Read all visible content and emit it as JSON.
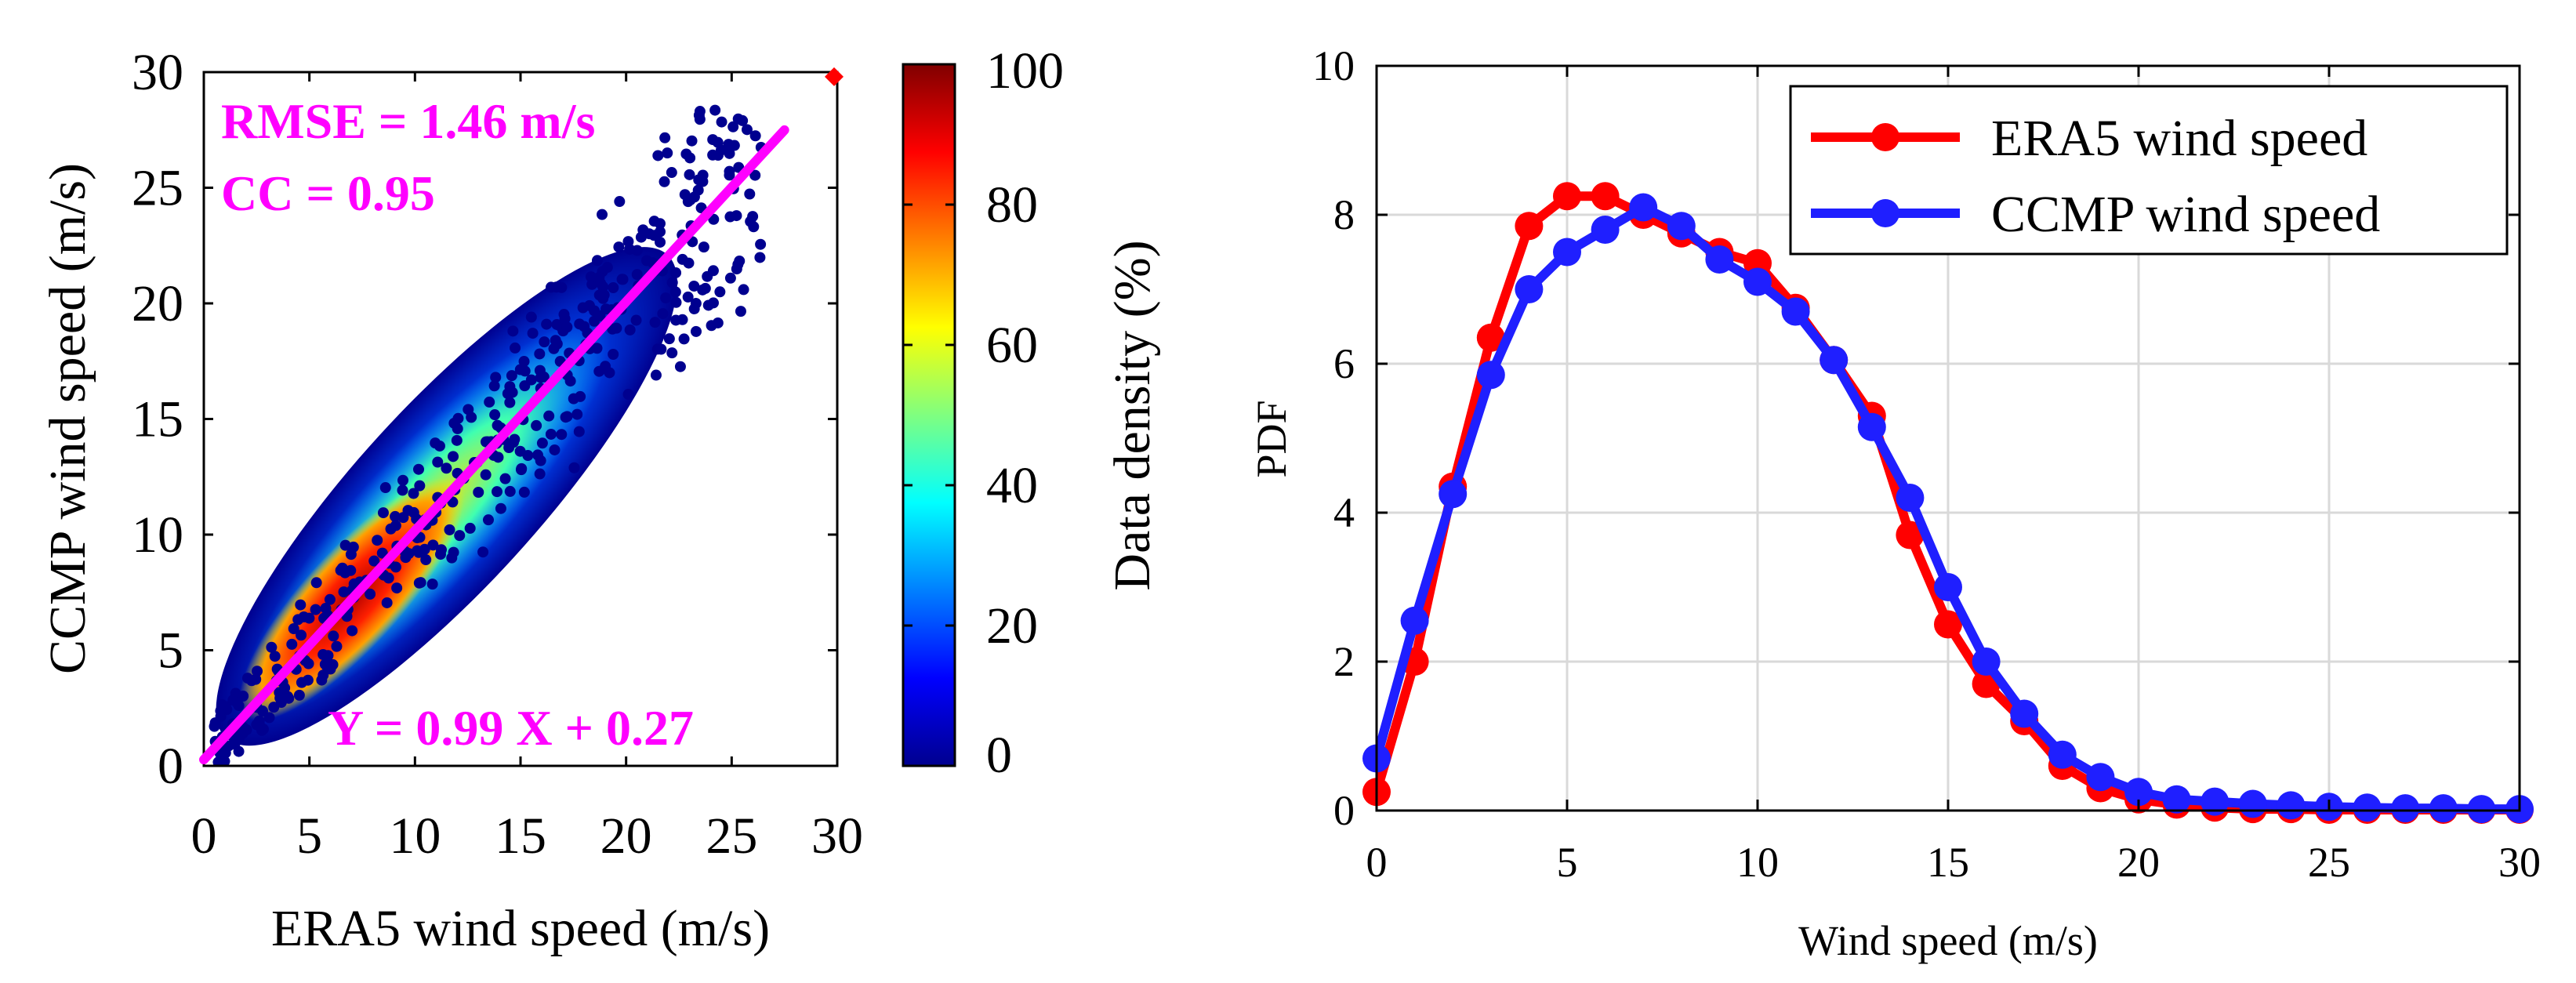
{
  "chart_data": [
    {
      "type": "scatter",
      "title": "",
      "xlabel": "ERA5 wind speed (m/s)",
      "ylabel": "CCMP wind speed (m/s)",
      "xlim": [
        0,
        30
      ],
      "ylim": [
        0,
        30
      ],
      "xticks": [
        0,
        5,
        10,
        15,
        20,
        25,
        30
      ],
      "yticks": [
        0,
        5,
        10,
        15,
        20,
        25,
        30
      ],
      "grid": false,
      "fit_line": {
        "slope": 0.99,
        "intercept": 0.27,
        "x_range": [
          0,
          27.5
        ],
        "color": "#ff00ff"
      },
      "reference_marker": {
        "x": 30,
        "y": 29.8,
        "color": "#ff0000"
      },
      "annotations": {
        "rmse": "RMSE = 1.46 m/s",
        "cc": "CC = 0.95",
        "equation": "Y = 0.99 X + 0.27"
      },
      "annotation_color": "#ff00ff",
      "density_colormap": "jet",
      "colorbar": {
        "label": "Data density (%)",
        "range": [
          0,
          100
        ],
        "ticks": [
          0,
          20,
          40,
          60,
          80,
          100
        ]
      }
    },
    {
      "type": "line",
      "title": "",
      "xlabel": "Wind speed (m/s)",
      "ylabel": "PDF",
      "xlim": [
        0,
        30
      ],
      "ylim": [
        0,
        10
      ],
      "xticks": [
        0,
        5,
        10,
        15,
        20,
        25,
        30
      ],
      "yticks": [
        0,
        2,
        4,
        6,
        8,
        10
      ],
      "grid": true,
      "legend": "top-right",
      "series": [
        {
          "name": "ERA5 wind speed",
          "color": "#ff0000",
          "x": [
            0,
            1,
            2,
            3,
            4,
            5,
            6,
            7,
            8,
            9,
            10,
            11,
            12,
            13,
            14,
            15,
            16,
            17,
            18,
            19,
            20,
            21,
            22,
            23,
            24,
            25,
            26,
            27,
            28,
            29,
            30
          ],
          "y": [
            0.25,
            2.0,
            4.35,
            6.35,
            7.85,
            8.25,
            8.25,
            8.0,
            7.75,
            7.5,
            7.35,
            6.75,
            6.05,
            5.3,
            3.7,
            2.5,
            1.7,
            1.2,
            0.6,
            0.3,
            0.15,
            0.08,
            0.04,
            0.02,
            0.02,
            0.01,
            0.01,
            0.01,
            0.01,
            0.01,
            0.01
          ]
        },
        {
          "name": "CCMP wind speed",
          "color": "#1f1fff",
          "x": [
            0,
            1,
            2,
            3,
            4,
            5,
            6,
            7,
            8,
            9,
            10,
            11,
            12,
            13,
            14,
            15,
            16,
            17,
            18,
            19,
            20,
            21,
            22,
            23,
            24,
            25,
            26,
            27,
            28,
            29,
            30
          ],
          "y": [
            0.7,
            2.55,
            4.25,
            5.85,
            7.0,
            7.5,
            7.8,
            8.1,
            7.85,
            7.4,
            7.1,
            6.7,
            6.05,
            5.15,
            4.2,
            3.0,
            2.0,
            1.3,
            0.75,
            0.45,
            0.25,
            0.15,
            0.12,
            0.09,
            0.07,
            0.05,
            0.04,
            0.03,
            0.03,
            0.02,
            0.02
          ]
        }
      ]
    }
  ]
}
